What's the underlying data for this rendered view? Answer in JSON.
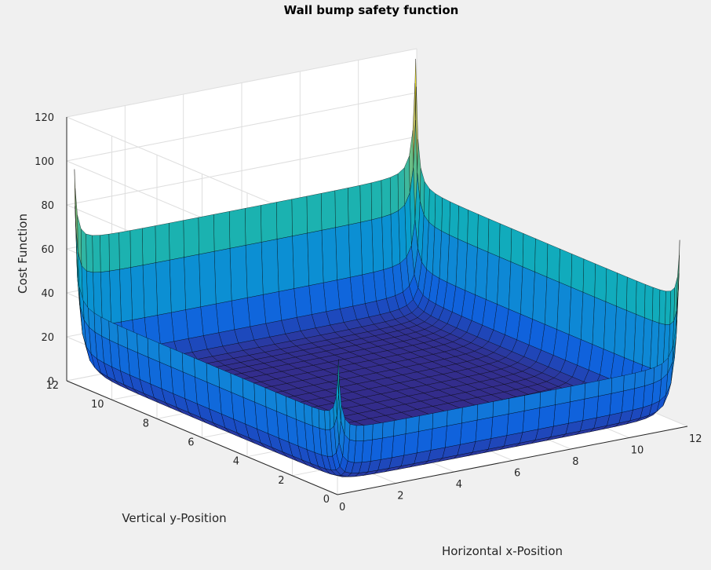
{
  "chart_data": {
    "type": "surface",
    "title": "Wall bump safety function",
    "xlabel": "Horizontal x-Position",
    "ylabel": "Vertical y-Position",
    "zlabel": "Cost Function",
    "xlim": [
      0,
      12
    ],
    "ylim": [
      0,
      12
    ],
    "zlim": [
      0,
      120
    ],
    "xticks": [
      "0",
      "2",
      "4",
      "6",
      "8",
      "10",
      "12"
    ],
    "yticks": [
      "0",
      "2",
      "4",
      "6",
      "8",
      "10",
      "12"
    ],
    "zticks": [
      "0",
      "20",
      "40",
      "60",
      "80",
      "100",
      "120"
    ],
    "grid": true,
    "colormap": "parula",
    "surface": {
      "function": "sum of inverse-square wall barriers on the four walls x=0, x=12, y=0, y=12",
      "x_range": [
        0.15,
        11.85
      ],
      "y_range": [
        0.15,
        11.85
      ],
      "corner_peaks": {
        "x0_y0": 52,
        "x12_y0": 92,
        "x0_y12": 104,
        "x12_y12": 112
      },
      "floor_value": 0.5
    }
  }
}
